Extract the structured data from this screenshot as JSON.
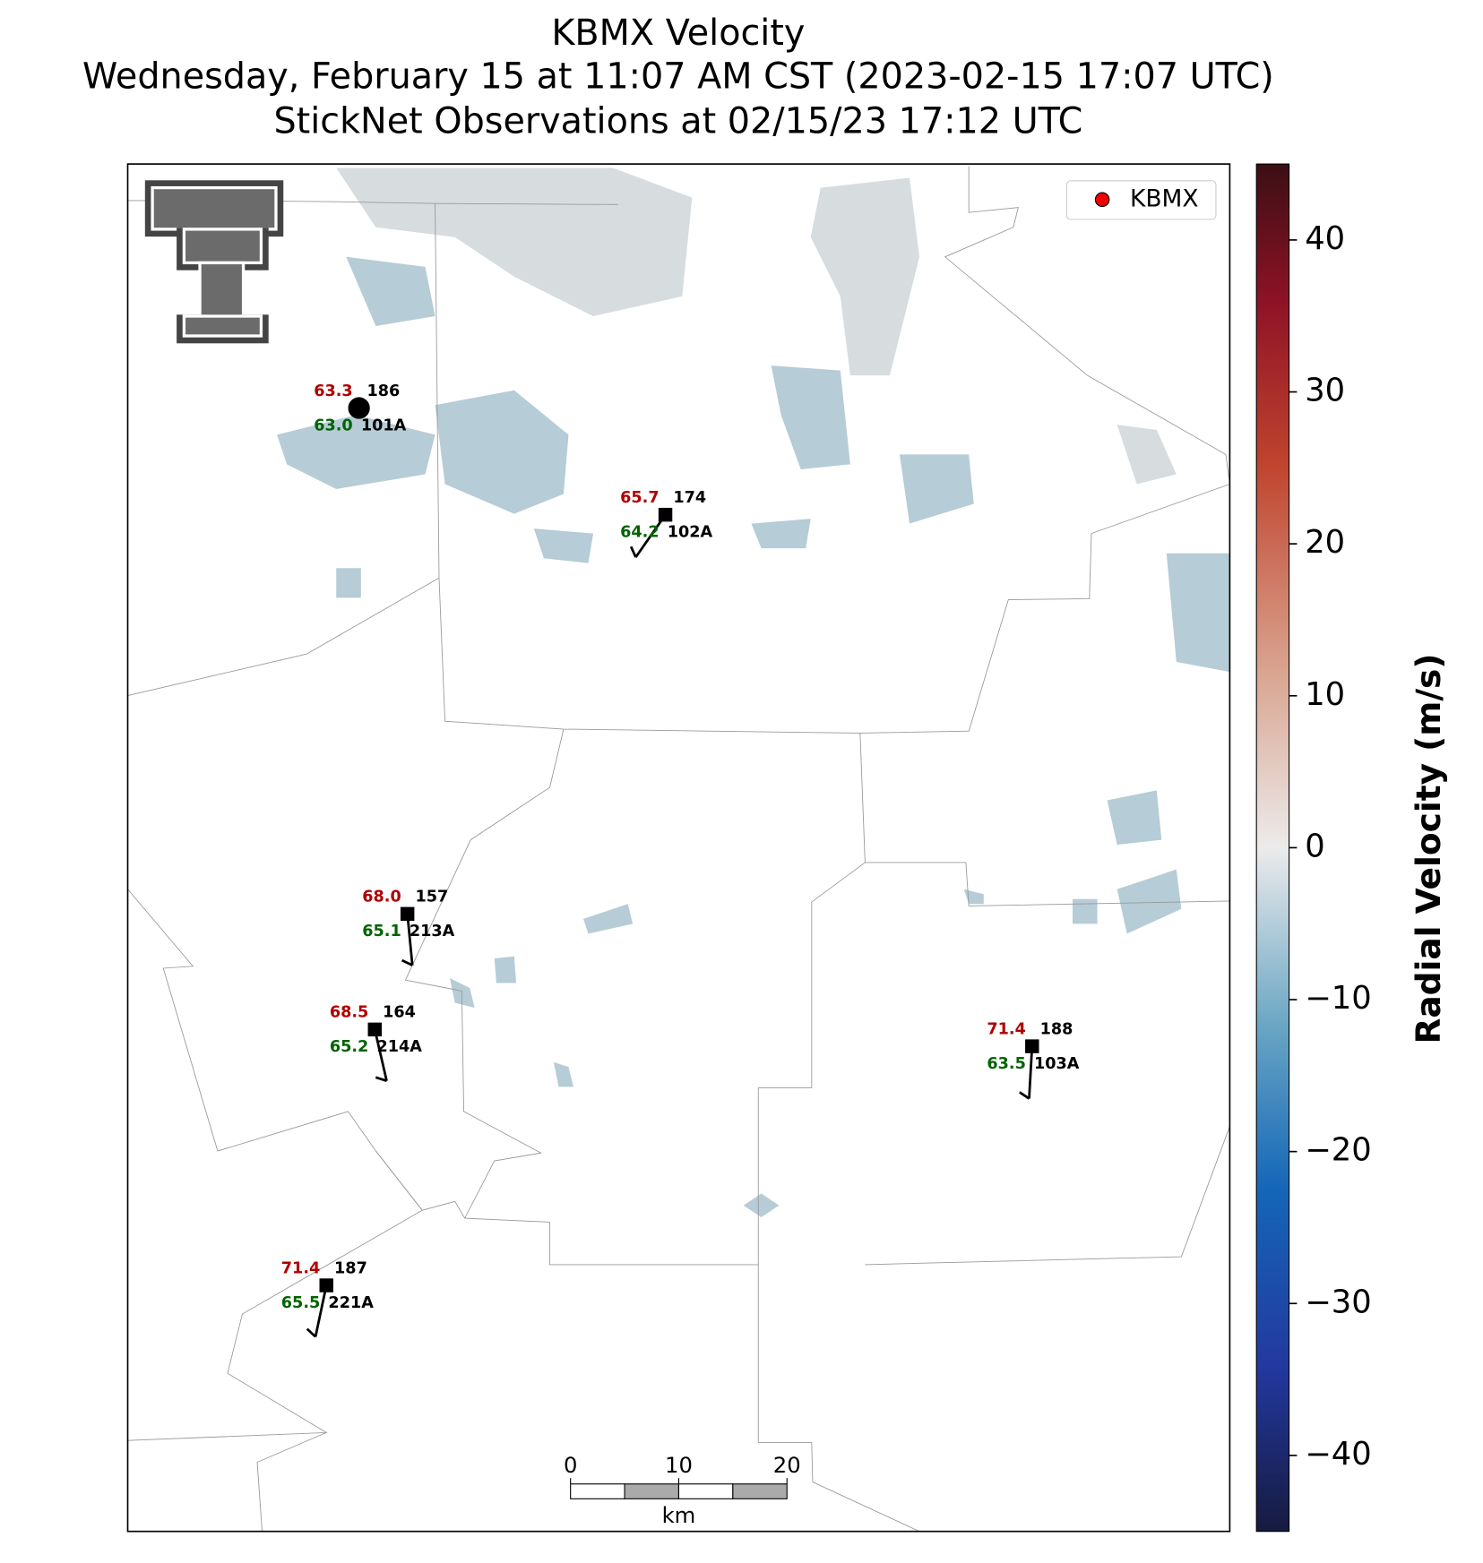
{
  "title": [
    "KBMX Velocity",
    "Wednesday, February 15 at 11:07 AM CST (2023-02-15 17:07 UTC)",
    "StickNet Observations at 02/15/23 17:12 UTC"
  ],
  "legend": {
    "label": "KBMX"
  },
  "stations": [
    {
      "id": "101A",
      "temperature": "63.3",
      "dewpoint": "63.0",
      "reading": "186"
    },
    {
      "id": "102A",
      "temperature": "65.7",
      "dewpoint": "64.2",
      "reading": "174"
    },
    {
      "id": "213A",
      "temperature": "68.0",
      "dewpoint": "65.1",
      "reading": "157"
    },
    {
      "id": "214A",
      "temperature": "68.5",
      "dewpoint": "65.2",
      "reading": "164"
    },
    {
      "id": "103A",
      "temperature": "71.4",
      "dewpoint": "63.5",
      "reading": "188"
    },
    {
      "id": "221A",
      "temperature": "71.4",
      "dewpoint": "65.5",
      "reading": "187"
    }
  ],
  "colorbar": {
    "label": "Radial Velocity (m/s)",
    "lim": [
      -45,
      45
    ],
    "ticks": [
      {
        "value": -40,
        "label": "−40"
      },
      {
        "value": -30,
        "label": "−30"
      },
      {
        "value": -20,
        "label": "−20"
      },
      {
        "value": -10,
        "label": "−10"
      },
      0,
      10,
      20,
      30,
      40
    ]
  },
  "scalebar": {
    "unit": "km",
    "ticks": [
      0,
      10,
      20
    ]
  }
}
